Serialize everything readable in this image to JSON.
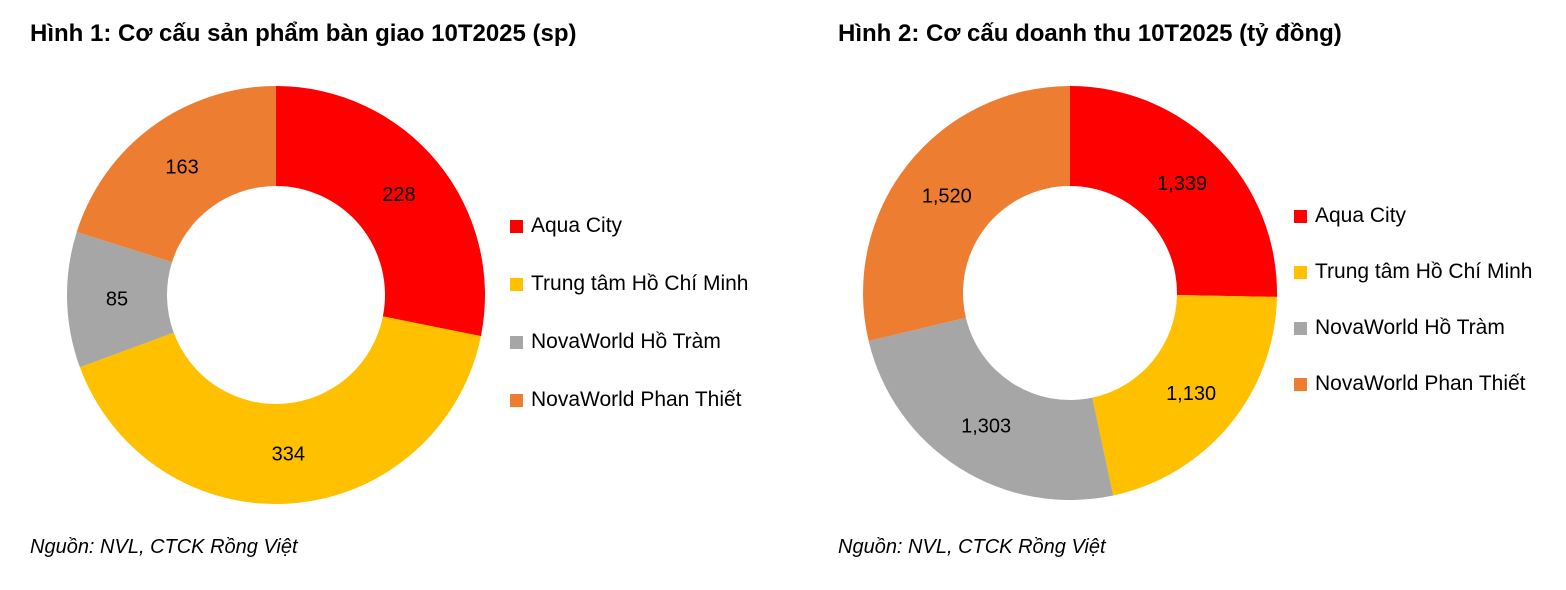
{
  "colors": {
    "aqua_city": "#FF0000",
    "trung_tam_hcm": "#FFC000",
    "hotram": "#A6A6A6",
    "phanthiet": "#ED7D31"
  },
  "chart_data": [
    {
      "type": "pie",
      "donut": true,
      "title": "Hình 1: Cơ cấu sản phẩm bàn giao 10T2025 (sp)",
      "source": "Nguồn: NVL, CTCK Rồng Việt",
      "legend_placement": "right",
      "categories": [
        "Aqua City",
        "Trung tâm Hồ Chí Minh",
        "NovaWorld Hồ Tràm",
        "NovaWorld Phan Thiết"
      ],
      "values": [
        228,
        334,
        85,
        163
      ],
      "labels": [
        "228",
        "334",
        "85",
        "163"
      ],
      "colors": [
        "#FF0000",
        "#FFC000",
        "#A6A6A6",
        "#ED7D31"
      ]
    },
    {
      "type": "pie",
      "donut": true,
      "title": "Hình 2: Cơ cấu doanh thu 10T2025 (tỷ đồng)",
      "source": "Nguồn: NVL, CTCK Rồng Việt",
      "legend_placement": "right",
      "categories": [
        "Aqua City",
        "Trung tâm Hồ Chí Minh",
        "NovaWorld Hồ Tràm",
        "NovaWorld Phan Thiết"
      ],
      "values": [
        1339,
        1130,
        1303,
        1520
      ],
      "labels": [
        "1,339",
        "1,130",
        "1,303",
        "1,520"
      ],
      "colors": [
        "#FF0000",
        "#FFC000",
        "#A6A6A6",
        "#ED7D31"
      ]
    }
  ]
}
